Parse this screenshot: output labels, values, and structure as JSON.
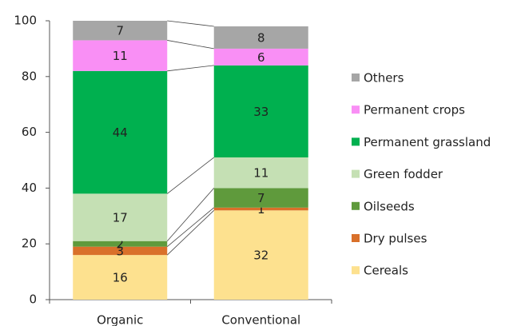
{
  "chart_data": {
    "type": "stacked_bar",
    "categories": [
      "Organic",
      "Conventional"
    ],
    "series": [
      {
        "name": "Cereals",
        "color": "#fde18f",
        "values": [
          16,
          32
        ]
      },
      {
        "name": "Dry pulses",
        "color": "#d9702a",
        "values": [
          3,
          1
        ]
      },
      {
        "name": "Oilseeds",
        "color": "#5f9a3c",
        "values": [
          2,
          7
        ]
      },
      {
        "name": "Green fodder",
        "color": "#c5e0b4",
        "values": [
          17,
          11
        ]
      },
      {
        "name": "Permanent grassland",
        "color": "#00b04f",
        "values": [
          44,
          33
        ]
      },
      {
        "name": "Permanent crops",
        "color": "#f98ff5",
        "values": [
          11,
          6
        ]
      },
      {
        "name": "Others",
        "color": "#a6a6a6",
        "values": [
          7,
          8
        ]
      }
    ],
    "ylim": [
      0,
      100
    ],
    "yticks": [
      0,
      20,
      40,
      60,
      80,
      100
    ],
    "legend": "right"
  }
}
